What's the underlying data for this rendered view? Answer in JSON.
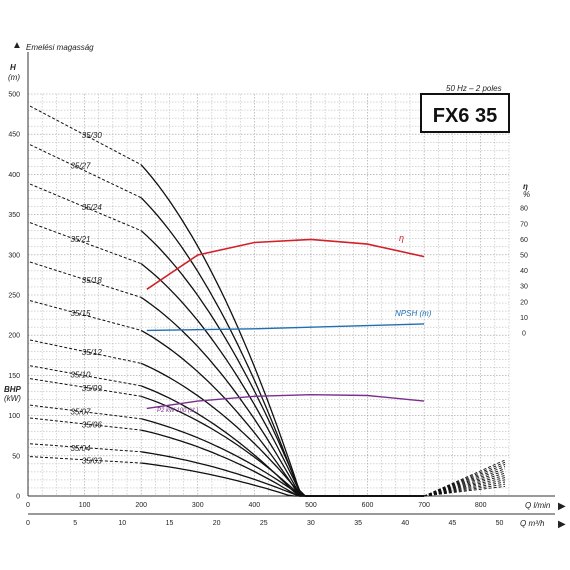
{
  "header": {
    "y_title": "Emelési magasság",
    "frequency_label": "50 Hz – 2 poles",
    "model_title": "FX6 35"
  },
  "chart_data": {
    "type": "line",
    "xlabel_q": "Q l/min",
    "xlabel_q2": "Q m³/h",
    "ylabel_h": "H",
    "ylabel_h_unit": "(m)",
    "ylabel_bhp": "BHP",
    "ylabel_bhp_unit": "(kW)",
    "ylabel_eta": "η",
    "ylabel_eta_unit": "%",
    "xlim_lmin": [
      0,
      850
    ],
    "ylim_h": [
      0,
      500
    ],
    "x_ticks_lmin": [
      "0",
      "100",
      "200",
      "300",
      "400",
      "500",
      "600",
      "700",
      "800"
    ],
    "x_ticks_m3h": [
      "0",
      "5",
      "10",
      "15",
      "20",
      "25",
      "30",
      "35",
      "40",
      "45",
      "50"
    ],
    "y_ticks_h": [
      "0",
      "50",
      "100",
      "150",
      "200",
      "250",
      "300",
      "350",
      "400",
      "450",
      "500"
    ],
    "eta_ticks": [
      "0",
      "10",
      "20",
      "30",
      "40",
      "50",
      "60",
      "70",
      "80"
    ],
    "stages": [
      {
        "name": "35/30",
        "label": "35/30",
        "h_shutoff": 485,
        "h_start": 412
      },
      {
        "name": "35/27",
        "label": "35/27",
        "h_shutoff": 437,
        "h_start": 371
      },
      {
        "name": "35/24",
        "label": "35/24",
        "h_shutoff": 388,
        "h_start": 330
      },
      {
        "name": "35/21",
        "label": "35/21",
        "h_shutoff": 340,
        "h_start": 289
      },
      {
        "name": "35/18",
        "label": "35/18",
        "h_shutoff": 291,
        "h_start": 247
      },
      {
        "name": "35/15",
        "label": "35/15",
        "h_shutoff": 243,
        "h_start": 206
      },
      {
        "name": "35/12",
        "label": "35/12",
        "h_shutoff": 194,
        "h_start": 165
      },
      {
        "name": "35/10",
        "label": "35/10",
        "h_shutoff": 162,
        "h_start": 137
      },
      {
        "name": "35/09",
        "label": "35/09",
        "h_shutoff": 146,
        "h_start": 124
      },
      {
        "name": "35/07",
        "label": "35/07",
        "h_shutoff": 113,
        "h_start": 96
      },
      {
        "name": "35/06",
        "label": "35/06",
        "h_shutoff": 97,
        "h_start": 82
      },
      {
        "name": "35/04",
        "label": "35/04",
        "h_shutoff": 65,
        "h_start": 55
      },
      {
        "name": "35/03",
        "label": "35/03",
        "h_shutoff": 49,
        "h_start": 41
      }
    ],
    "efficiency": {
      "name": "η",
      "color": "#d32029",
      "points": [
        [
          210,
          28
        ],
        [
          300,
          50
        ],
        [
          400,
          58
        ],
        [
          500,
          60
        ],
        [
          600,
          57
        ],
        [
          700,
          49
        ]
      ]
    },
    "npsh": {
      "name": "NPSH (m)",
      "color": "#1f6fb2",
      "points": [
        [
          210,
          206
        ],
        [
          400,
          208
        ],
        [
          600,
          212
        ],
        [
          700,
          214
        ]
      ]
    },
    "power": {
      "name": "P2 kW 100 (st.)",
      "color": "#7a2f8f",
      "points": [
        [
          210,
          109
        ],
        [
          300,
          118
        ],
        [
          400,
          124
        ],
        [
          500,
          126
        ],
        [
          600,
          125
        ],
        [
          700,
          118
        ]
      ]
    },
    "colors": {
      "curve": "#111111",
      "extension": "#111111",
      "grid": "#9a9a9a",
      "title_box_border": "#111111"
    }
  }
}
